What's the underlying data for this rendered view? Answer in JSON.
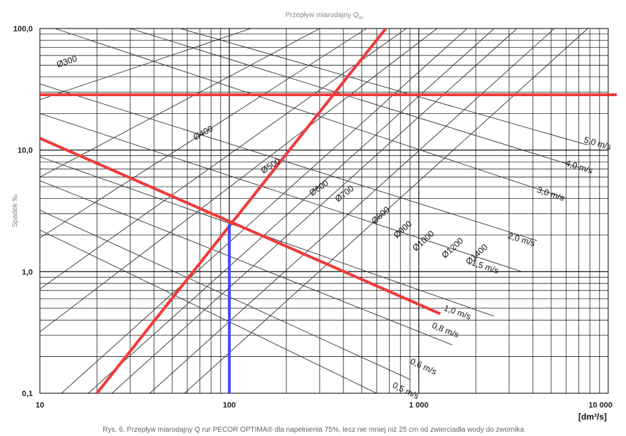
{
  "chart_data": {
    "type": "line",
    "title": "Przepływ miarodajny Q",
    "title_sub": "m",
    "ylabel": "Spadek ‰",
    "xunit": "[dm³/s]",
    "x_scale": "log",
    "y_scale": "log",
    "xlim": [
      10,
      10000
    ],
    "ylim": [
      0.1,
      100
    ],
    "x_ticks": [
      {
        "value": 10,
        "label": "10"
      },
      {
        "value": 100,
        "label": "100"
      },
      {
        "value": 1000,
        "label": "1 000"
      },
      {
        "value": 10000,
        "label": "10 000"
      }
    ],
    "y_ticks": [
      {
        "value": 100,
        "label": "100,0"
      },
      {
        "value": 10,
        "label": "10,0"
      },
      {
        "value": 1,
        "label": "1,0"
      },
      {
        "value": 0.1,
        "label": "0,1"
      }
    ],
    "grid": true,
    "diameter_lines": [
      {
        "label": "Ø300",
        "points": [
          [
            10,
            26
          ],
          [
            130,
            100
          ]
        ]
      },
      {
        "label": "Ø400",
        "points": [
          [
            10,
            6
          ],
          [
            300,
            100
          ]
        ]
      },
      {
        "label": "Ø500",
        "points": [
          [
            10,
            1.9
          ],
          [
            530,
            100
          ]
        ]
      },
      {
        "label": "Ø600",
        "points": [
          [
            10,
            0.72
          ],
          [
            860,
            100
          ]
        ]
      },
      {
        "label": "Ø700",
        "points": [
          [
            10,
            0.32
          ],
          [
            1250,
            100
          ]
        ]
      },
      {
        "label": "Ø800",
        "points": [
          [
            13,
            0.1
          ],
          [
            1800,
            100
          ]
        ]
      },
      {
        "label": "Ø900",
        "points": [
          [
            18,
            0.1
          ],
          [
            2500,
            100
          ]
        ]
      },
      {
        "label": "Ø1000",
        "points": [
          [
            24,
            0.1
          ],
          [
            3300,
            100
          ]
        ]
      },
      {
        "label": "Ø1200",
        "points": [
          [
            38,
            0.1
          ],
          [
            5200,
            100
          ]
        ]
      },
      {
        "label": "Ø1400",
        "points": [
          [
            58,
            0.1
          ],
          [
            7800,
            100
          ]
        ]
      }
    ],
    "velocity_lines": [
      {
        "label": "0,5 m/s",
        "points": [
          [
            10,
            2.2
          ],
          [
            600,
            0.1
          ]
        ]
      },
      {
        "label": "0,6 m/s",
        "points": [
          [
            10,
            3.2
          ],
          [
            900,
            0.13
          ]
        ]
      },
      {
        "label": "0,8 m/s",
        "points": [
          [
            10,
            5.6
          ],
          [
            1500,
            0.25
          ]
        ]
      },
      {
        "label": "1,0 m/s",
        "points": [
          [
            10,
            8.8
          ],
          [
            2500,
            0.43
          ]
        ]
      },
      {
        "label": "1,5 m/s",
        "points": [
          [
            10,
            20
          ],
          [
            3500,
            1.0
          ]
        ]
      },
      {
        "label": "2,0 m/s",
        "points": [
          [
            10,
            35
          ],
          [
            4200,
            1.8
          ]
        ]
      },
      {
        "label": "3,0 m/s",
        "points": [
          [
            12,
            100
          ],
          [
            6000,
            4.0
          ]
        ]
      },
      {
        "label": "4,0 m/s",
        "points": [
          [
            30,
            100
          ],
          [
            7000,
            7.2
          ]
        ]
      },
      {
        "label": "5,0 m/s",
        "points": [
          [
            55,
            100
          ],
          [
            7800,
            11
          ]
        ]
      }
    ],
    "highlight_lines": [
      {
        "color": "#ee3b3b",
        "points": [
          [
            10,
            28.5
          ],
          [
            10000,
            28.5
          ]
        ]
      },
      {
        "color": "#ee3b3b",
        "points": [
          [
            10,
            12.5
          ],
          [
            1300,
            0.45
          ]
        ]
      },
      {
        "color": "#ee3b3b",
        "points": [
          [
            20,
            0.1
          ],
          [
            670,
            100
          ]
        ]
      },
      {
        "color": "#4a4ef0",
        "points": [
          [
            100,
            2.45
          ],
          [
            100,
            0.1
          ]
        ]
      }
    ],
    "caption": "Rys. 6. Przepływ miarodajny Q   rur PECOR OPTIMA® dla napełnienia 75%, lecz nie mniej niż 25 cm od zwierciadła wody do zwornika",
    "caption_sub": "m"
  }
}
